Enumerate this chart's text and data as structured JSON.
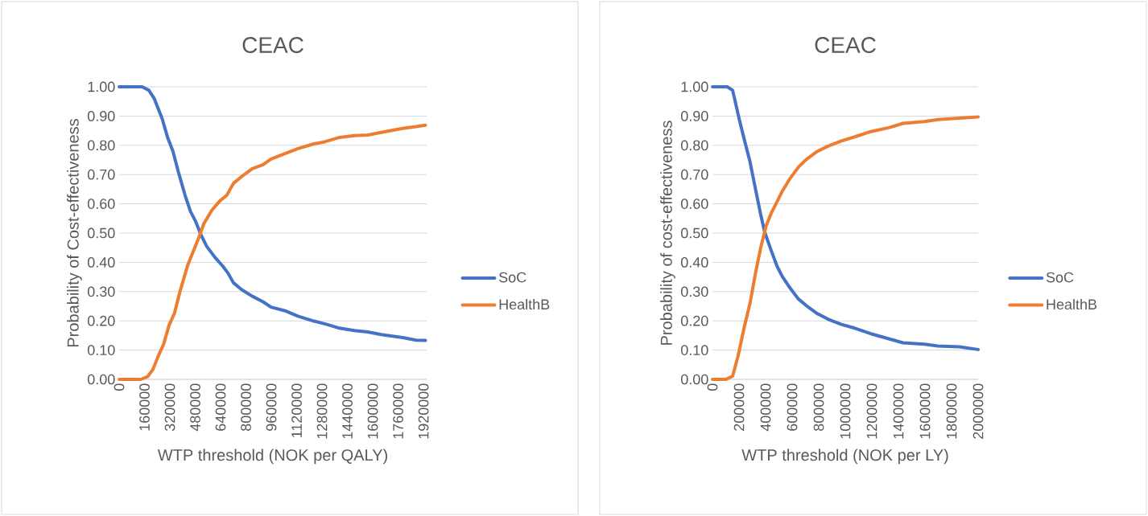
{
  "chart_data": [
    {
      "type": "line",
      "title": "CEAC",
      "xlabel": "WTP threshold (NOK per QALY)",
      "ylabel": "Probability of Cost-effectiveness",
      "xlim": [
        0,
        1940000
      ],
      "xticks": [
        0,
        160000,
        320000,
        480000,
        640000,
        800000,
        960000,
        1120000,
        1280000,
        1440000,
        1600000,
        1760000,
        1920000
      ],
      "ylim": [
        0,
        1
      ],
      "yticks": [
        {
          "value": 0,
          "label": "0.00"
        },
        {
          "value": 0.1,
          "label": "0.10"
        },
        {
          "value": 0.2,
          "label": "0.20"
        },
        {
          "value": 0.3,
          "label": "0.30"
        },
        {
          "value": 0.4,
          "label": "0.40"
        },
        {
          "value": 0.5,
          "label": "0.50"
        },
        {
          "value": 0.6,
          "label": "0.60"
        },
        {
          "value": 0.7,
          "label": "0.70"
        },
        {
          "value": 0.8,
          "label": "0.80"
        },
        {
          "value": 0.9,
          "label": "0.90"
        },
        {
          "value": 1,
          "label": "1.00"
        }
      ],
      "grid": "y",
      "legend": "right",
      "marker": "none",
      "line_style": "solid",
      "series": [
        {
          "name": "SoC",
          "color": "#4472c4",
          "x": [
            0,
            145600,
            188000,
            222000,
            272000,
            306000,
            339000,
            372000,
            416000,
            450000,
            484000,
            518000,
            552000,
            603000,
            655000,
            687000,
            721000,
            772000,
            840000,
            908000,
            958000,
            1043000,
            1128000,
            1229000,
            1297000,
            1382000,
            1483000,
            1568000,
            1653000,
            1788000,
            1873000,
            1932000
          ],
          "values": [
            1.0,
            1.0,
            0.988,
            0.959,
            0.89,
            0.826,
            0.78,
            0.712,
            0.629,
            0.574,
            0.538,
            0.492,
            0.455,
            0.418,
            0.386,
            0.363,
            0.33,
            0.307,
            0.284,
            0.265,
            0.247,
            0.235,
            0.216,
            0.199,
            0.19,
            0.176,
            0.167,
            0.162,
            0.153,
            0.143,
            0.134,
            0.133
          ]
        },
        {
          "name": "HealthB",
          "color": "#ed7d31",
          "x": [
            0,
            137000,
            179000,
            213000,
            247000,
            281000,
            315000,
            349000,
            383000,
            433000,
            467000,
            501000,
            535000,
            586000,
            637000,
            679000,
            721000,
            772000,
            840000,
            908000,
            958000,
            1043000,
            1128000,
            1229000,
            1297000,
            1382000,
            1483000,
            1568000,
            1653000,
            1788000,
            1873000,
            1932000
          ],
          "values": [
            0,
            0,
            0.009,
            0.034,
            0.08,
            0.121,
            0.185,
            0.226,
            0.299,
            0.391,
            0.437,
            0.482,
            0.533,
            0.579,
            0.611,
            0.629,
            0.67,
            0.693,
            0.72,
            0.734,
            0.753,
            0.771,
            0.789,
            0.805,
            0.812,
            0.826,
            0.833,
            0.835,
            0.844,
            0.858,
            0.864,
            0.869
          ]
        }
      ]
    },
    {
      "type": "line",
      "title": "CEAC",
      "xlabel": "WTP threshold (NOK per LY)",
      "ylabel": "Probability of cost-effectiveness",
      "xlim": [
        0,
        2000000
      ],
      "xticks": [
        0,
        200000,
        400000,
        600000,
        800000,
        1000000,
        1200000,
        1400000,
        1600000,
        1800000,
        2000000
      ],
      "ylim": [
        0,
        1
      ],
      "yticks": [
        {
          "value": 0,
          "label": "0.00"
        },
        {
          "value": 0.1,
          "label": "0.10"
        },
        {
          "value": 0.2,
          "label": "0.20"
        },
        {
          "value": 0.3,
          "label": "0.30"
        },
        {
          "value": 0.4,
          "label": "0.40"
        },
        {
          "value": 0.5,
          "label": "0.50"
        },
        {
          "value": 0.6,
          "label": "0.60"
        },
        {
          "value": 0.7,
          "label": "0.70"
        },
        {
          "value": 0.8,
          "label": "0.80"
        },
        {
          "value": 0.9,
          "label": "0.90"
        },
        {
          "value": 1,
          "label": "1.00"
        }
      ],
      "grid": "y",
      "legend": "right",
      "marker": "none",
      "line_style": "solid",
      "series": [
        {
          "name": "SoC",
          "color": "#4472c4",
          "x": [
            0,
            111000,
            152000,
            202000,
            242000,
            283000,
            323000,
            364000,
            394000,
            444000,
            485000,
            525000,
            586000,
            646000,
            707000,
            788000,
            869000,
            970000,
            1071000,
            1192000,
            1333000,
            1434000,
            1596000,
            1697000,
            1859000,
            2000000
          ],
          "values": [
            1.0,
            1.0,
            0.988,
            0.888,
            0.815,
            0.743,
            0.652,
            0.561,
            0.502,
            0.438,
            0.388,
            0.352,
            0.311,
            0.275,
            0.252,
            0.225,
            0.206,
            0.188,
            0.175,
            0.156,
            0.138,
            0.125,
            0.12,
            0.114,
            0.111,
            0.102
          ]
        },
        {
          "name": "HealthB",
          "color": "#ed7d31",
          "x": [
            0,
            101000,
            152000,
            192000,
            242000,
            283000,
            323000,
            364000,
            404000,
            444000,
            485000,
            525000,
            586000,
            646000,
            707000,
            788000,
            869000,
            970000,
            1071000,
            1192000,
            1333000,
            1434000,
            1596000,
            1697000,
            1859000,
            2000000
          ],
          "values": [
            0,
            0,
            0.011,
            0.079,
            0.184,
            0.261,
            0.361,
            0.452,
            0.525,
            0.57,
            0.606,
            0.643,
            0.688,
            0.725,
            0.752,
            0.779,
            0.797,
            0.815,
            0.829,
            0.847,
            0.861,
            0.875,
            0.881,
            0.888,
            0.893,
            0.897
          ]
        }
      ]
    }
  ]
}
